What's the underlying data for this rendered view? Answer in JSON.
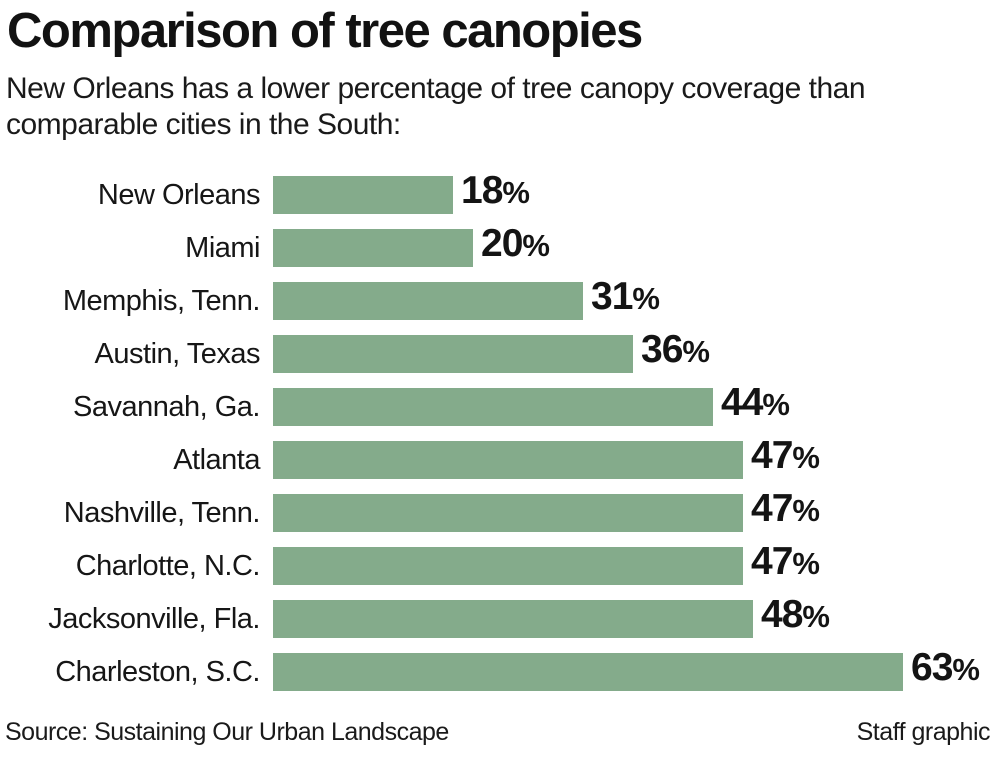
{
  "header": {
    "title": "Comparison of tree canopies",
    "subtitle_lines": [
      "New Orleans has a lower percentage of tree canopy coverage than",
      "comparable cities in the South:"
    ]
  },
  "chart_data": {
    "type": "bar",
    "orientation": "horizontal",
    "title": "Comparison of tree canopies",
    "categories": [
      "New Orleans",
      "Miami",
      "Memphis, Tenn.",
      "Austin, Texas",
      "Savannah, Ga.",
      "Atlanta",
      "Nashville, Tenn.",
      "Charlotte, N.C.",
      "Jacksonville, Fla.",
      "Charleston, S.C."
    ],
    "values": [
      18,
      20,
      31,
      36,
      44,
      47,
      47,
      47,
      48,
      63
    ],
    "value_suffix": "%",
    "xlim": [
      0,
      63
    ],
    "grid": false,
    "legend": false,
    "bar_color": "#84ab8b"
  },
  "footer": {
    "source": "Source: Sustaining Our Urban Landscape",
    "credit": "Staff graphic"
  }
}
